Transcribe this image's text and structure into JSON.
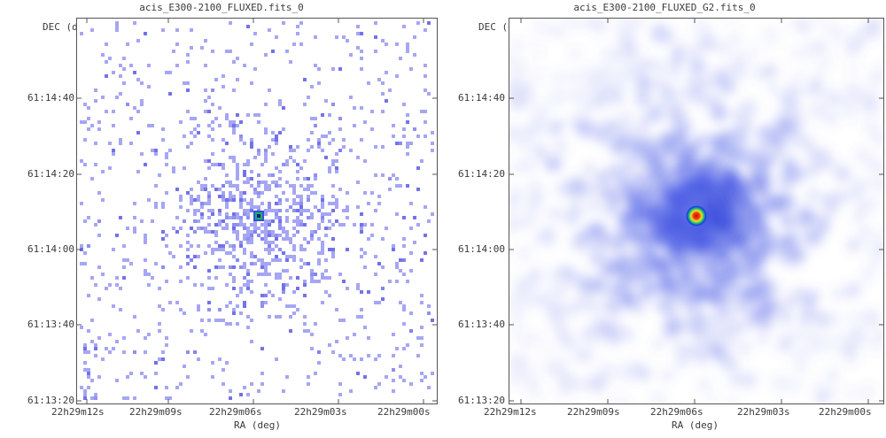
{
  "panels": [
    {
      "title": "acis_E300-2100_FLUXED.fits_0",
      "dec_label": "DEC (deg)",
      "ra_label": "RA (deg)",
      "yticks": [
        "61:14:40",
        "61:14:20",
        "61:14:00",
        "61:13:40",
        "61:13:20"
      ],
      "xticks": [
        "22h29m12s",
        "22h29m09s",
        "22h29m06s",
        "22h29m03s",
        "22h29m00s"
      ],
      "rendering": "raw-pixels"
    },
    {
      "title": "acis_E300-2100_FLUXED_G2.fits_0",
      "dec_label": "DEC (deg)",
      "ra_label": "RA (deg)",
      "yticks": [
        "61:14:40",
        "61:14:20",
        "61:14:00",
        "61:13:40",
        "61:13:20"
      ],
      "xticks": [
        "22h29m12s",
        "22h29m09s",
        "22h29m06s",
        "22h29m03s",
        "22h29m00s"
      ],
      "rendering": "gaussian-smoothed"
    }
  ],
  "colors": {
    "low": "#8888f0",
    "mid": "#3a4ee0",
    "source_core": "#d01010",
    "source_ring": "#f0e020",
    "source_halo": "#20b060",
    "axis": "#555555"
  }
}
